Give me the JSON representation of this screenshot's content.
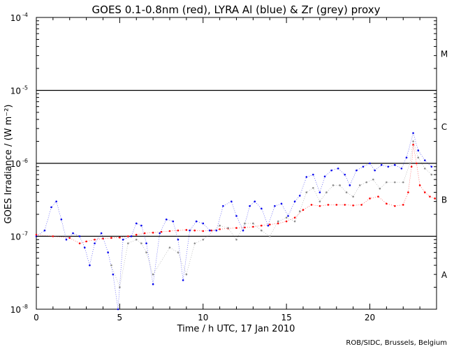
{
  "chart_data": {
    "type": "scatter",
    "title": "GOES 0.1-0.8nm (red), LYRA Al (blue) & Zr (grey) proxy",
    "xlabel": "Time / h UTC, 17 Jan 2010",
    "ylabel": "GOES Irradiance / (W m⁻²)",
    "xlim": [
      0,
      24
    ],
    "ylim_log10": [
      -8,
      -4
    ],
    "x_ticks": [
      0,
      5,
      10,
      15,
      20
    ],
    "y_ticks": [
      {
        "base": "10",
        "exp": "-8",
        "value": 1e-08
      },
      {
        "base": "10",
        "exp": "-7",
        "value": 1e-07
      },
      {
        "base": "10",
        "exp": "-6",
        "value": 1e-06
      },
      {
        "base": "10",
        "exp": "-5",
        "value": 1e-05
      },
      {
        "base": "10",
        "exp": "-4",
        "value": 0.0001
      }
    ],
    "class_levels": [
      1e-07,
      1e-06,
      1e-05
    ],
    "class_labels": [
      {
        "label": "A",
        "value": 3e-08
      },
      {
        "label": "B",
        "value": 3.2e-07
      },
      {
        "label": "C",
        "value": 3.2e-06
      },
      {
        "label": "M",
        "value": 3.2e-05
      }
    ],
    "credit": "ROB/SIDC, Brussels, Belgium",
    "series": [
      {
        "name": "GOES 0.1-0.8nm",
        "color": "#ff0000",
        "x": [
          0.0,
          1.0,
          2.0,
          2.6,
          3.0,
          3.5,
          4.0,
          4.5,
          5.0,
          5.5,
          6.0,
          6.5,
          7.0,
          7.5,
          8.0,
          8.5,
          9.0,
          9.5,
          10.0,
          10.5,
          11.0,
          11.5,
          12.0,
          12.5,
          13.0,
          13.5,
          14.0,
          14.5,
          15.0,
          15.5,
          16.0,
          16.5,
          17.0,
          17.5,
          18.0,
          18.5,
          19.0,
          19.5,
          20.0,
          20.5,
          21.0,
          21.5,
          22.0,
          22.3,
          22.5,
          22.6,
          22.8,
          23.0,
          23.3,
          23.6,
          23.9
        ],
        "y": [
          1.05e-07,
          1e-07,
          9.5e-08,
          8e-08,
          8.5e-08,
          9e-08,
          9.3e-08,
          9.5e-08,
          9.6e-08,
          1e-07,
          1.05e-07,
          1.1e-07,
          1.12e-07,
          1.15e-07,
          1.18e-07,
          1.2e-07,
          1.22e-07,
          1.2e-07,
          1.18e-07,
          1.2e-07,
          1.25e-07,
          1.28e-07,
          1.3e-07,
          1.32e-07,
          1.35e-07,
          1.4e-07,
          1.45e-07,
          1.5e-07,
          1.6e-07,
          1.8e-07,
          2.3e-07,
          2.7e-07,
          2.6e-07,
          2.7e-07,
          2.7e-07,
          2.7e-07,
          2.65e-07,
          2.7e-07,
          3.3e-07,
          3.5e-07,
          2.8e-07,
          2.6e-07,
          2.7e-07,
          4e-07,
          9e-07,
          1.8e-06,
          1e-06,
          5e-07,
          4e-07,
          3.5e-07,
          3.3e-07
        ]
      },
      {
        "name": "LYRA Al proxy",
        "color": "#0000ee",
        "x": [
          0.0,
          0.5,
          0.9,
          1.2,
          1.5,
          1.8,
          2.2,
          2.6,
          2.9,
          3.2,
          3.5,
          3.9,
          4.3,
          4.6,
          4.9,
          5.2,
          5.7,
          6.0,
          6.3,
          6.6,
          7.0,
          7.4,
          7.8,
          8.2,
          8.5,
          8.8,
          9.2,
          9.6,
          10.0,
          10.4,
          10.8,
          11.2,
          11.7,
          12.0,
          12.4,
          12.8,
          13.1,
          13.5,
          13.9,
          14.3,
          14.7,
          15.1,
          15.5,
          15.8,
          16.2,
          16.6,
          17.0,
          17.3,
          17.7,
          18.1,
          18.5,
          18.8,
          19.2,
          19.6,
          20.0,
          20.3,
          20.7,
          21.1,
          21.5,
          21.9,
          22.2,
          22.6,
          22.9,
          23.3,
          23.7
        ],
        "y": [
          1e-07,
          1.2e-07,
          2.5e-07,
          3e-07,
          1.7e-07,
          9e-08,
          1.1e-07,
          1e-07,
          7e-08,
          4e-08,
          8e-08,
          1.1e-07,
          6e-08,
          3e-08,
          1e-08,
          9e-08,
          1e-07,
          1.5e-07,
          1.4e-07,
          8e-08,
          2.2e-08,
          1.1e-07,
          1.7e-07,
          1.6e-07,
          9e-08,
          2.5e-08,
          1.2e-07,
          1.6e-07,
          1.5e-07,
          1.2e-07,
          1.2e-07,
          2.6e-07,
          3e-07,
          1.9e-07,
          1.2e-07,
          2.6e-07,
          3e-07,
          2.4e-07,
          1.4e-07,
          2.6e-07,
          2.8e-07,
          1.9e-07,
          3e-07,
          3.6e-07,
          6.5e-07,
          7e-07,
          4e-07,
          6.6e-07,
          8e-07,
          8.5e-07,
          7e-07,
          5e-07,
          8e-07,
          9e-07,
          1e-06,
          8e-07,
          9.5e-07,
          9e-07,
          9.5e-07,
          8.5e-07,
          1.2e-06,
          2.6e-06,
          1.5e-06,
          1.1e-06,
          9e-07
        ]
      },
      {
        "name": "LYRA Zr proxy",
        "color": "#8c8c8c",
        "x": [
          4.5,
          5.0,
          5.5,
          6.0,
          6.3,
          6.6,
          7.0,
          8.0,
          8.5,
          9.0,
          9.5,
          10.0,
          11.0,
          11.5,
          12.0,
          12.5,
          13.0,
          13.5,
          14.0,
          14.5,
          15.0,
          15.5,
          15.8,
          16.2,
          16.6,
          17.0,
          17.4,
          17.8,
          18.2,
          18.6,
          19.0,
          19.4,
          19.8,
          20.2,
          20.6,
          21.0,
          21.5,
          22.0,
          22.4,
          22.6,
          22.9,
          23.3,
          23.7
        ],
        "y": [
          4e-08,
          2e-08,
          8e-08,
          9e-08,
          8e-08,
          6e-08,
          3e-08,
          7e-08,
          6e-08,
          3e-08,
          8e-08,
          9e-08,
          1.4e-07,
          1.3e-07,
          9e-08,
          1.5e-07,
          1.5e-07,
          1.2e-07,
          1e-07,
          1.6e-07,
          1.8e-07,
          1.6e-07,
          2.2e-07,
          4e-07,
          4.6e-07,
          3e-07,
          4e-07,
          5e-07,
          5e-07,
          4e-07,
          3.5e-07,
          5e-07,
          5.5e-07,
          6e-07,
          4.5e-07,
          5.5e-07,
          5.5e-07,
          5.5e-07,
          1e-06,
          2e-06,
          1.2e-06,
          8.5e-07,
          7e-07
        ]
      }
    ]
  }
}
